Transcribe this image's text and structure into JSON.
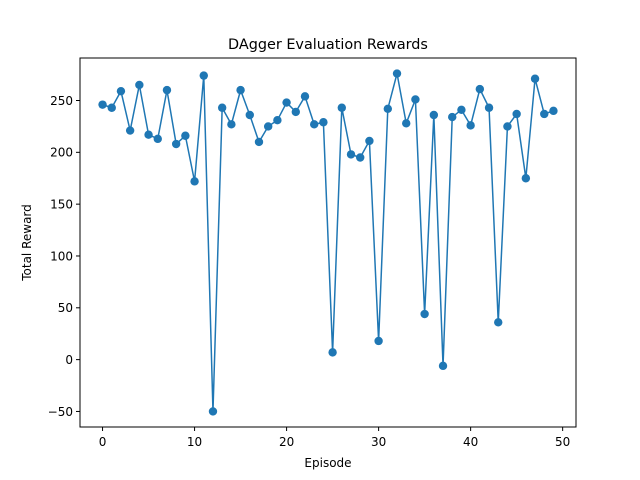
{
  "chart_data": {
    "type": "line",
    "title": "DAgger Evaluation Rewards",
    "xlabel": "Episode",
    "ylabel": "Total Reward",
    "xlim": [
      -2.45,
      51.45
    ],
    "ylim": [
      -65,
      291
    ],
    "xticks": [
      0,
      10,
      20,
      30,
      40,
      50
    ],
    "yticks": [
      -50,
      0,
      50,
      100,
      150,
      200,
      250
    ],
    "ytick_labels": [
      "−50",
      "0",
      "50",
      "100",
      "150",
      "200",
      "250"
    ],
    "grid": false,
    "color": "#1f77b4",
    "marker": "circle",
    "series": [
      {
        "x": [
          0,
          1,
          2,
          3,
          4,
          5,
          6,
          7,
          8,
          9,
          10,
          11,
          12,
          13,
          14,
          15,
          16,
          17,
          18,
          19,
          20,
          21,
          22,
          23,
          24,
          25,
          26,
          27,
          28,
          29,
          30,
          31,
          32,
          33,
          34,
          35,
          36,
          37,
          38,
          39,
          40,
          41,
          42,
          43,
          44,
          45,
          46,
          47,
          48,
          49
        ],
        "values": [
          246,
          243,
          259,
          221,
          265,
          217,
          213,
          260,
          208,
          216,
          172,
          274,
          -50,
          243,
          227,
          260,
          236,
          210,
          225,
          231,
          248,
          239,
          254,
          227,
          229,
          7,
          243,
          198,
          195,
          211,
          18,
          242,
          276,
          228,
          251,
          44,
          236,
          -6,
          234,
          241,
          226,
          261,
          243,
          36,
          225,
          237,
          175,
          271,
          237,
          240
        ]
      }
    ]
  }
}
